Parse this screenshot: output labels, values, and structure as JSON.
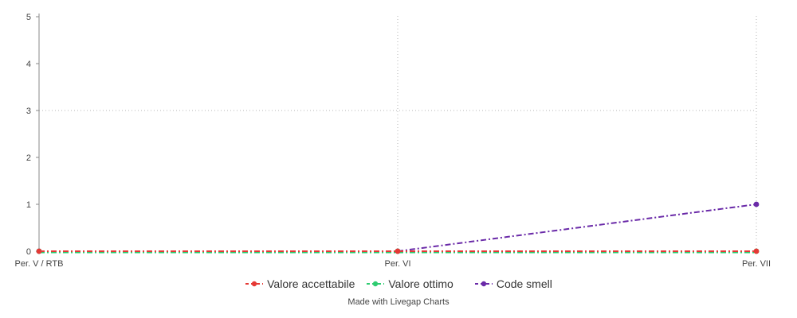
{
  "chart_data": {
    "type": "line",
    "categories": [
      "Per. V / RTB",
      "Per. VI",
      "Per. VII"
    ],
    "ylim": [
      0,
      5
    ],
    "yticks": [
      0,
      1,
      2,
      3,
      4,
      5
    ],
    "grid": {
      "vertical": true,
      "horizontal_at": [
        3
      ]
    },
    "line_style": "dash-dot",
    "legend_position": "bottom-center",
    "series": [
      {
        "name": "Valore accettabile",
        "color": "#e53935",
        "values": [
          0,
          0,
          0
        ]
      },
      {
        "name": "Valore ottimo",
        "color": "#2ecc71",
        "values": [
          0,
          0,
          0
        ]
      },
      {
        "name": "Code smell",
        "color": "#6a2aa8",
        "values": [
          0,
          0,
          1
        ]
      }
    ]
  },
  "credit": "Made with Livegap Charts"
}
